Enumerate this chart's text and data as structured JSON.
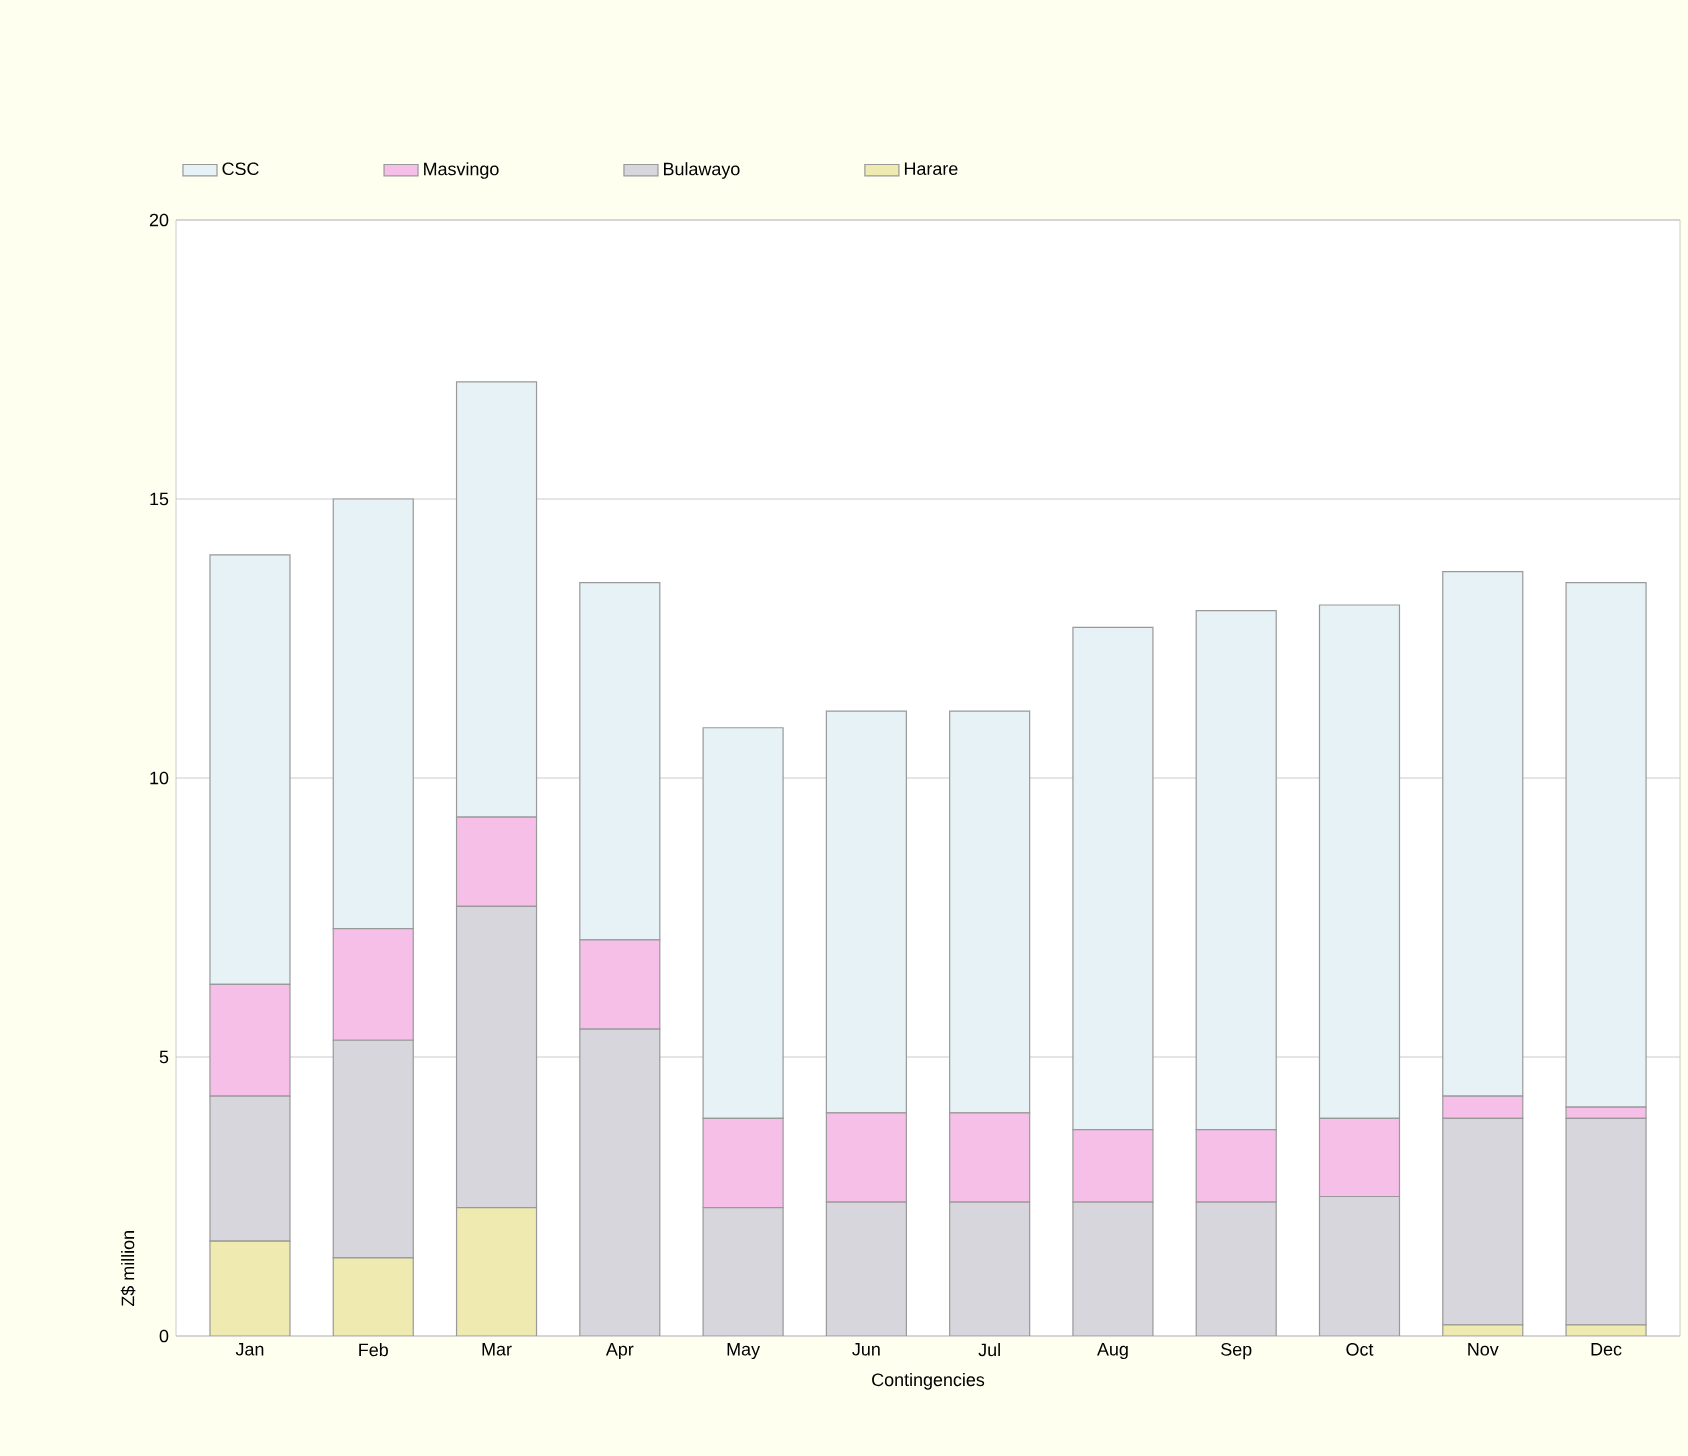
{
  "chart_data": {
    "type": "bar",
    "stacked": true,
    "xlabel": "Contingencies",
    "ylabel": "Z$ million",
    "categories": [
      "Jan",
      "Feb",
      "Mar",
      "Apr",
      "May",
      "Jun",
      "Jul",
      "Aug",
      "Sep",
      "Oct",
      "Nov",
      "Dec"
    ],
    "series": [
      {
        "name": "Harare",
        "color": "#eeeab0",
        "values": [
          1.7,
          1.4,
          2.3,
          0,
          0,
          0,
          0,
          0,
          0,
          0,
          0.2,
          0.2
        ]
      },
      {
        "name": "Bulawayo",
        "color": "#d6d6dc",
        "values": [
          2.6,
          3.9,
          5.4,
          5.5,
          2.3,
          2.4,
          2.4,
          2.4,
          2.4,
          2.5,
          3.7,
          3.7
        ]
      },
      {
        "name": "Masvingo",
        "color": "#f5bfe8",
        "values": [
          2.0,
          2.0,
          1.6,
          1.6,
          1.6,
          1.6,
          1.6,
          1.3,
          1.3,
          1.4,
          0.4,
          0.2
        ]
      },
      {
        "name": "CSC",
        "color": "#e6f2f5",
        "values": [
          7.7,
          7.7,
          7.8,
          6.4,
          7.0,
          7.2,
          7.2,
          9.0,
          9.3,
          9.2,
          9.4,
          9.4
        ]
      }
    ],
    "ylim": [
      0,
      20
    ],
    "yticks": [
      0,
      5,
      10,
      15,
      20
    ],
    "grid": "y",
    "legend": "top left"
  }
}
